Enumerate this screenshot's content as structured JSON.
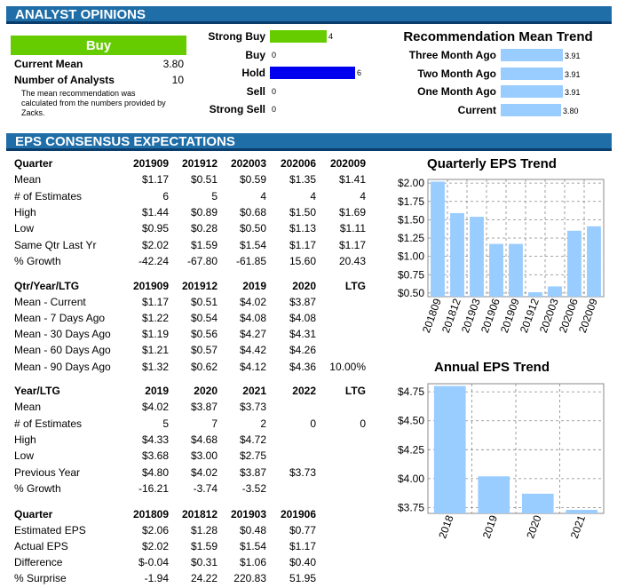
{
  "analyst": {
    "header": "ANALYST OPINIONS",
    "rating": "Buy",
    "current_mean_label": "Current Mean",
    "current_mean_value": "3.80",
    "num_analysts_label": "Number of Analysts",
    "num_analysts_value": "10",
    "note": "The mean recommendation was calculated from the numbers provided by Zacks.",
    "recs": [
      {
        "label": "Strong Buy",
        "count": 4,
        "color": "#66cc00"
      },
      {
        "label": "Buy",
        "count": 0,
        "color": "#66cc00"
      },
      {
        "label": "Hold",
        "count": 6,
        "color": "#0000ee"
      },
      {
        "label": "Sell",
        "count": 0,
        "color": "#cc0000"
      },
      {
        "label": "Strong Sell",
        "count": 0,
        "color": "#cc0000"
      }
    ],
    "trend_title": "Recommendation Mean Trend",
    "trend": [
      {
        "label": "Three Month Ago",
        "value": "3.91"
      },
      {
        "label": "Two Month Ago",
        "value": "3.91"
      },
      {
        "label": "One Month Ago",
        "value": "3.91"
      },
      {
        "label": "Current",
        "value": "3.80"
      }
    ]
  },
  "eps": {
    "header": "EPS CONSENSUS EXPECTATIONS",
    "t1": {
      "head": [
        "Quarter",
        "201909",
        "201912",
        "202003",
        "202006",
        "202009"
      ],
      "rows": [
        [
          "Mean",
          "$1.17",
          "$0.51",
          "$0.59",
          "$1.35",
          "$1.41"
        ],
        [
          "# of Estimates",
          "6",
          "5",
          "4",
          "4",
          "4"
        ],
        [
          "High",
          "$1.44",
          "$0.89",
          "$0.68",
          "$1.50",
          "$1.69"
        ],
        [
          "Low",
          "$0.95",
          "$0.28",
          "$0.50",
          "$1.13",
          "$1.11"
        ],
        [
          "Same Qtr Last Yr",
          "$2.02",
          "$1.59",
          "$1.54",
          "$1.17",
          "$1.17"
        ],
        [
          "% Growth",
          "-42.24",
          "-67.80",
          "-61.85",
          "15.60",
          "20.43"
        ]
      ]
    },
    "t2": {
      "head": [
        "Qtr/Year/LTG",
        "201909",
        "201912",
        "2019",
        "2020",
        "LTG"
      ],
      "rows": [
        [
          "Mean - Current",
          "$1.17",
          "$0.51",
          "$4.02",
          "$3.87",
          ""
        ],
        [
          "Mean - 7 Days Ago",
          "$1.22",
          "$0.54",
          "$4.08",
          "$4.08",
          ""
        ],
        [
          "Mean - 30 Days Ago",
          "$1.19",
          "$0.56",
          "$4.27",
          "$4.31",
          ""
        ],
        [
          "Mean - 60 Days Ago",
          "$1.21",
          "$0.57",
          "$4.42",
          "$4.26",
          ""
        ],
        [
          "Mean - 90 Days Ago",
          "$1.32",
          "$0.62",
          "$4.12",
          "$4.36",
          "10.00%"
        ]
      ]
    },
    "t3": {
      "head": [
        "Year/LTG",
        "2019",
        "2020",
        "2021",
        "2022",
        "LTG"
      ],
      "rows": [
        [
          "Mean",
          "$4.02",
          "$3.87",
          "$3.73",
          "",
          ""
        ],
        [
          "# of Estimates",
          "5",
          "7",
          "2",
          "0",
          "0"
        ],
        [
          "High",
          "$4.33",
          "$4.68",
          "$4.72",
          "",
          ""
        ],
        [
          "Low",
          "$3.68",
          "$3.00",
          "$2.75",
          "",
          ""
        ],
        [
          "Previous Year",
          "$4.80",
          "$4.02",
          "$3.87",
          "$3.73",
          ""
        ],
        [
          "% Growth",
          "-16.21",
          "-3.74",
          "-3.52",
          "",
          ""
        ]
      ]
    },
    "t4": {
      "head": [
        "Quarter",
        "201809",
        "201812",
        "201903",
        "201906"
      ],
      "rows": [
        [
          "Estimated EPS",
          "$2.06",
          "$1.28",
          "$0.48",
          "$0.77"
        ],
        [
          "Actual EPS",
          "$2.02",
          "$1.59",
          "$1.54",
          "$1.17"
        ],
        [
          "Difference",
          "$-0.04",
          "$0.31",
          "$1.06",
          "$0.40"
        ],
        [
          "% Surprise",
          "-1.94",
          "24.22",
          "220.83",
          "51.95"
        ]
      ]
    }
  },
  "chart_data": [
    {
      "type": "bar",
      "title": "Quarterly EPS Trend",
      "categories": [
        "201809",
        "201812",
        "201903",
        "201906",
        "201909",
        "201912",
        "202003",
        "202006",
        "202009"
      ],
      "values": [
        2.02,
        1.59,
        1.54,
        1.17,
        1.17,
        0.51,
        0.59,
        1.35,
        1.41
      ],
      "ylim": [
        0.45,
        2.05
      ],
      "yticks": [
        "$0.50",
        "$0.75",
        "$1.00",
        "$1.25",
        "$1.50",
        "$1.75",
        "$2.00"
      ],
      "ytick_values": [
        0.5,
        0.75,
        1.0,
        1.25,
        1.5,
        1.75,
        2.0
      ],
      "color": "#99ccff",
      "grid": true
    },
    {
      "type": "bar",
      "title": "Annual EPS Trend",
      "categories": [
        "2018",
        "2019",
        "2020",
        "2021"
      ],
      "values": [
        4.8,
        4.02,
        3.87,
        3.73
      ],
      "ylim": [
        3.7,
        4.82
      ],
      "yticks": [
        "$3.75",
        "$4.00",
        "$4.25",
        "$4.50",
        "$4.75"
      ],
      "ytick_values": [
        3.75,
        4.0,
        4.25,
        4.5,
        4.75
      ],
      "color": "#99ccff",
      "grid": true
    }
  ]
}
